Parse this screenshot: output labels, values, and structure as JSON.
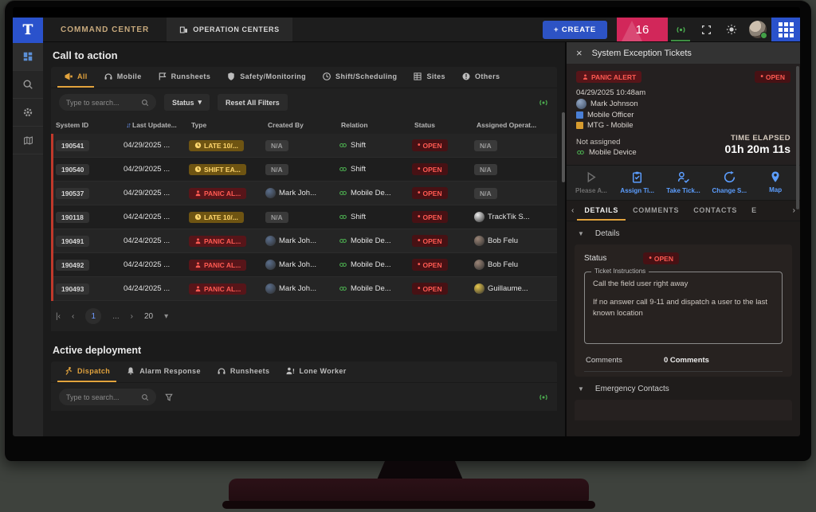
{
  "topbar": {
    "brand_letter": "T",
    "tabs": [
      {
        "label": "COMMAND CENTER"
      },
      {
        "label": "OPERATION CENTERS"
      }
    ],
    "create_button": "+ CREATE",
    "alert_count": "16"
  },
  "sidebar": {
    "items": [
      {
        "icon": "dashboard",
        "active": true
      },
      {
        "icon": "search",
        "active": false
      },
      {
        "icon": "gear",
        "active": false
      },
      {
        "icon": "map",
        "active": false
      }
    ]
  },
  "call_to_action": {
    "title": "Call to action",
    "tabs": [
      {
        "label": "All",
        "icon": "megaphone",
        "active": true
      },
      {
        "label": "Mobile",
        "icon": "headset",
        "active": false
      },
      {
        "label": "Runsheets",
        "icon": "flag",
        "active": false
      },
      {
        "label": "Safety/Monitoring",
        "icon": "shield",
        "active": false
      },
      {
        "label": "Shift/Scheduling",
        "icon": "clock",
        "active": false
      },
      {
        "label": "Sites",
        "icon": "sites",
        "active": false
      },
      {
        "label": "Others",
        "icon": "alert",
        "active": false
      }
    ],
    "search_placeholder": "Type to search...",
    "status_filter_label": "Status",
    "reset_filters_label": "Reset All Filters",
    "table": {
      "headers": [
        "System ID",
        "Last Update...",
        "Type",
        "Created By",
        "Relation",
        "Status",
        "Assigned Operat..."
      ],
      "rows": [
        {
          "id": "190541",
          "date": "04/29/2025 ...",
          "type": {
            "label": "LATE 10/...",
            "kind": "late"
          },
          "created_by": {
            "label": "N/A",
            "na": true
          },
          "relation": "Shift",
          "status": "OPEN",
          "assigned": {
            "label": "N/A",
            "na": true
          }
        },
        {
          "id": "190540",
          "date": "04/29/2025 ...",
          "type": {
            "label": "SHIFT EA...",
            "kind": "late"
          },
          "created_by": {
            "label": "N/A",
            "na": true
          },
          "relation": "Shift",
          "status": "OPEN",
          "assigned": {
            "label": "N/A",
            "na": true
          }
        },
        {
          "id": "190537",
          "date": "04/29/2025 ...",
          "type": {
            "label": "PANIC AL...",
            "kind": "panic"
          },
          "created_by": {
            "label": "Mark Joh...",
            "avatar": "#5b6f8d"
          },
          "relation": "Mobile De...",
          "status": "OPEN",
          "assigned": {
            "label": "N/A",
            "na": true
          }
        },
        {
          "id": "190118",
          "date": "04/24/2025 ...",
          "type": {
            "label": "LATE 10/...",
            "kind": "late"
          },
          "created_by": {
            "label": "N/A",
            "na": true
          },
          "relation": "Shift",
          "status": "OPEN",
          "assigned": {
            "label": "TrackTik S...",
            "avatar": "#ededed"
          }
        },
        {
          "id": "190491",
          "date": "04/24/2025 ...",
          "type": {
            "label": "PANIC AL...",
            "kind": "panic"
          },
          "created_by": {
            "label": "Mark Joh...",
            "avatar": "#5b6f8d"
          },
          "relation": "Mobile De...",
          "status": "OPEN",
          "assigned": {
            "label": "Bob Felu",
            "avatar": "#9b8577"
          }
        },
        {
          "id": "190492",
          "date": "04/24/2025 ...",
          "type": {
            "label": "PANIC AL...",
            "kind": "panic"
          },
          "created_by": {
            "label": "Mark Joh...",
            "avatar": "#5b6f8d"
          },
          "relation": "Mobile De...",
          "status": "OPEN",
          "assigned": {
            "label": "Bob Felu",
            "avatar": "#9b8577"
          }
        },
        {
          "id": "190493",
          "date": "04/24/2025 ...",
          "type": {
            "label": "PANIC AL...",
            "kind": "panic"
          },
          "created_by": {
            "label": "Mark Joh...",
            "avatar": "#5b6f8d"
          },
          "relation": "Mobile De...",
          "status": "OPEN",
          "assigned": {
            "label": "Guillaume...",
            "avatar": "#e8c84d"
          }
        }
      ]
    },
    "pagination": {
      "page": "1",
      "ellipsis": "...",
      "page_size": "20"
    }
  },
  "active_deployment": {
    "title": "Active deployment",
    "tabs": [
      {
        "label": "Dispatch",
        "icon": "runner",
        "active": true
      },
      {
        "label": "Alarm Response",
        "icon": "bell",
        "active": false
      },
      {
        "label": "Runsheets",
        "icon": "headset",
        "active": false
      },
      {
        "label": "Lone Worker",
        "icon": "lone-worker",
        "active": false
      }
    ],
    "search_placeholder": "Type to search..."
  },
  "panel": {
    "title": "System Exception Tickets",
    "ticket": {
      "type_badge": "PANIC ALERT",
      "status_badge": "OPEN",
      "datetime": "04/29/2025 10:48am",
      "reported_by": "Mark Johnson",
      "role": "Mobile Officer",
      "account": "MTG - Mobile",
      "assignment": "Not assigned",
      "device": "Mobile Device",
      "time_elapsed_label": "TIME ELAPSED",
      "time_elapsed": "01h 20m 11s"
    },
    "actions": [
      {
        "label": "Please A...",
        "icon": "play",
        "disabled": true
      },
      {
        "label": "Assign Ti...",
        "icon": "clipboard",
        "disabled": false
      },
      {
        "label": "Take Tick...",
        "icon": "person-check",
        "disabled": false
      },
      {
        "label": "Change S...",
        "icon": "change",
        "disabled": false
      },
      {
        "label": "Map",
        "icon": "pin",
        "disabled": false
      }
    ],
    "tabs": [
      {
        "label": "DETAILS",
        "active": true
      },
      {
        "label": "COMMENTS",
        "active": false
      },
      {
        "label": "CONTACTS",
        "active": false
      },
      {
        "label": "E",
        "active": false
      }
    ],
    "details": {
      "section_title": "Details",
      "status_label": "Status",
      "status_value": "OPEN",
      "instructions_label": "Ticket Instructions",
      "instructions": [
        "Call the field user right away",
        "If no answer call 9-11 and dispatch a user to the last known location"
      ],
      "comments_label": "Comments",
      "comments_value": "0 Comments"
    },
    "emergency_contacts_title": "Emergency Contacts"
  },
  "colors": {
    "brand_blue": "#2a52cc",
    "accent_amber": "#e2a33d",
    "alert_red": "#ff5a52",
    "badge_pink": "#d2275a",
    "live_green": "#4caf50"
  }
}
